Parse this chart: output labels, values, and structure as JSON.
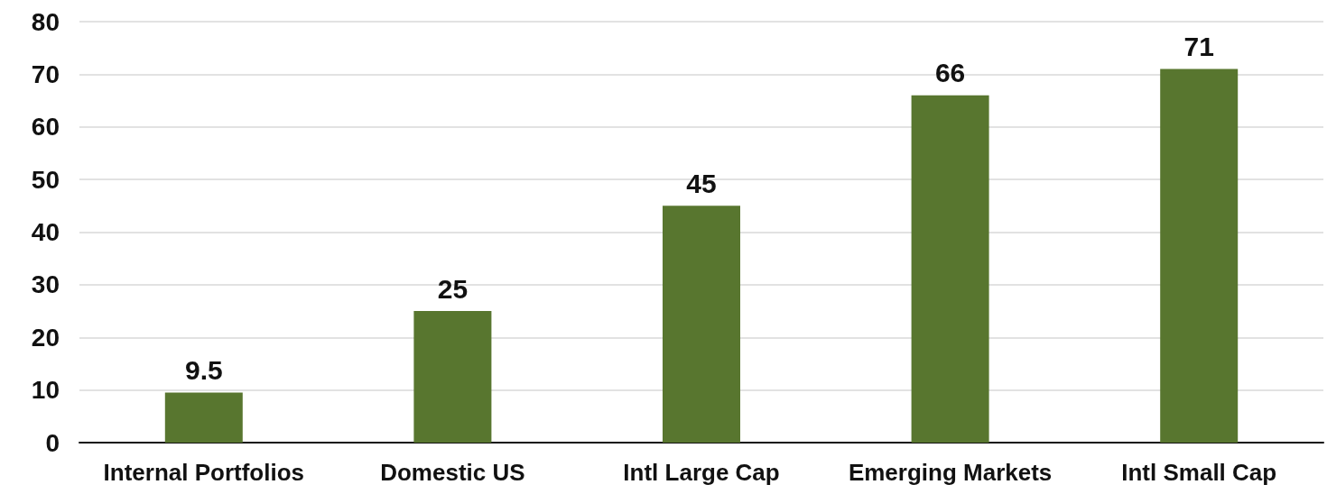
{
  "chart_data": {
    "type": "bar",
    "categories": [
      "Internal Portfolios",
      "Domestic US",
      "Intl Large Cap",
      "Emerging Markets",
      "Intl Small Cap"
    ],
    "values": [
      9.5,
      25,
      45,
      66,
      71
    ],
    "color": "#58762f",
    "ylim": [
      0,
      80
    ],
    "yticks": [
      0,
      10,
      20,
      30,
      40,
      50,
      60,
      70,
      80
    ],
    "grid": "y",
    "data_labels": true
  }
}
